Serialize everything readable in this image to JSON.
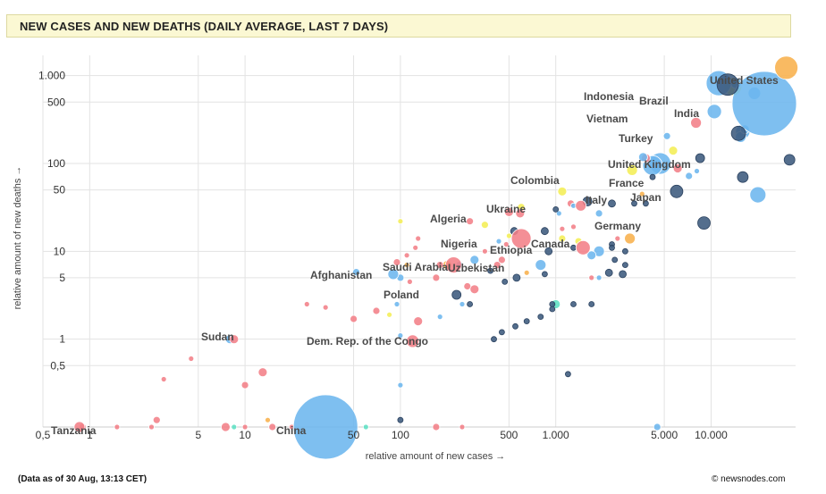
{
  "header": {
    "title": "NEW CASES AND NEW DEATHS (DAILY AVERAGE, LAST 7 DAYS)"
  },
  "footer": {
    "date_note": "(Data as of 30 Aug, 13:13 CET)",
    "credit": "© newsnodes.com"
  },
  "colors": {
    "blue": "#6cb6ee",
    "navy": "#3c5a7d",
    "red": "#f27f87",
    "yellow": "#f4ee55",
    "orange": "#f8b04c",
    "teal": "#5fe0c4",
    "dark": "#4a5a6e"
  },
  "chart_data": {
    "type": "scatter",
    "xlabel": "relative amount of new cases →",
    "ylabel": "relative amount of new deaths →",
    "xscale": "log",
    "yscale": "log",
    "xlim": [
      0.5,
      35000
    ],
    "ylim": [
      0.1,
      1700
    ],
    "x_ticks": [
      {
        "v": 0.5,
        "label": "0,5"
      },
      {
        "v": 1,
        "label": "1"
      },
      {
        "v": 5,
        "label": "5"
      },
      {
        "v": 10,
        "label": "10"
      },
      {
        "v": 50,
        "label": "50"
      },
      {
        "v": 100,
        "label": "100"
      },
      {
        "v": 500,
        "label": "500"
      },
      {
        "v": 1000,
        "label": "1.000"
      },
      {
        "v": 5000,
        "label": "5.000"
      },
      {
        "v": 10000,
        "label": "10.000"
      }
    ],
    "y_ticks": [
      {
        "v": 0.5,
        "label": "0,5"
      },
      {
        "v": 1,
        "label": "1"
      },
      {
        "v": 5,
        "label": "5"
      },
      {
        "v": 10,
        "label": "10"
      },
      {
        "v": 50,
        "label": "50"
      },
      {
        "v": 100,
        "label": "100"
      },
      {
        "v": 500,
        "label": "500"
      },
      {
        "v": 1000,
        "label": "1.000"
      }
    ],
    "grid": true,
    "labeled_points": [
      {
        "name": "United States",
        "x": 30500,
        "y": 1230,
        "r": 13,
        "c": "orange",
        "lx": 794,
        "ly": 94
      },
      {
        "name": "India",
        "x": 22000,
        "y": 480,
        "r": 36,
        "c": "blue",
        "lx": 754,
        "ly": 131
      },
      {
        "name": "Indonesia",
        "x": 11200,
        "y": 820,
        "r": 14,
        "c": "blue",
        "lx": 653,
        "ly": 112
      },
      {
        "name": "Brazil",
        "x": 12800,
        "y": 790,
        "r": 12,
        "c": "navy",
        "lx": 715,
        "ly": 117
      },
      {
        "name": "Vietnam",
        "x": 8000,
        "y": 290,
        "r": 6,
        "c": "red",
        "lx": 656,
        "ly": 137
      },
      {
        "name": "Turkey",
        "x": 15000,
        "y": 220,
        "r": 8,
        "c": "navy",
        "lx": 692,
        "ly": 159
      },
      {
        "name": "United Kingdom",
        "x": 32000,
        "y": 110,
        "r": 6,
        "c": "navy",
        "lx": 680,
        "ly": 188
      },
      {
        "name": "France",
        "x": 16000,
        "y": 70,
        "r": 6,
        "c": "navy",
        "lx": 681,
        "ly": 209
      },
      {
        "name": "Japan",
        "x": 20000,
        "y": 44,
        "r": 9,
        "c": "blue",
        "lx": 705,
        "ly": 225
      },
      {
        "name": "Italy",
        "x": 6000,
        "y": 48,
        "r": 7,
        "c": "navy",
        "lx": 655,
        "ly": 228
      },
      {
        "name": "Germany",
        "x": 9000,
        "y": 21,
        "r": 7,
        "c": "navy",
        "lx": 665,
        "ly": 257
      },
      {
        "name": "Colombia",
        "x": 3100,
        "y": 84,
        "r": 6,
        "c": "yellow",
        "lx": 571,
        "ly": 206
      },
      {
        "name": "Ukraine",
        "x": 1450,
        "y": 33,
        "r": 6,
        "c": "red",
        "lx": 544,
        "ly": 238
      },
      {
        "name": "Canada",
        "x": 3000,
        "y": 14,
        "r": 6,
        "c": "orange",
        "lx": 594,
        "ly": 277
      },
      {
        "name": "Ethiopia",
        "x": 1500,
        "y": 11,
        "r": 8,
        "c": "red",
        "lx": 548,
        "ly": 284
      },
      {
        "name": "Algeria",
        "x": 590,
        "y": 27,
        "r": 5,
        "c": "red",
        "lx": 481,
        "ly": 249
      },
      {
        "name": "Nigeria",
        "x": 600,
        "y": 14,
        "r": 11,
        "c": "red",
        "lx": 493,
        "ly": 277
      },
      {
        "name": "Uzbekistan",
        "x": 560,
        "y": 5,
        "r": 4,
        "c": "navy",
        "lx": 501,
        "ly": 304
      },
      {
        "name": "Saudi Arabia",
        "x": 220,
        "y": 7,
        "r": 9,
        "c": "red",
        "lx": 428,
        "ly": 303
      },
      {
        "name": "Afghanistan",
        "x": 90,
        "y": 5.5,
        "r": 6,
        "c": "blue",
        "lx": 347,
        "ly": 312
      },
      {
        "name": "Poland",
        "x": 230,
        "y": 3.2,
        "r": 5,
        "c": "navy",
        "lx": 429,
        "ly": 334
      },
      {
        "name": "Dem. Rep. of the Congo",
        "x": 120,
        "y": 0.95,
        "r": 7,
        "c": "red",
        "lx": 343,
        "ly": 386
      },
      {
        "name": "Sudan",
        "x": 8.5,
        "y": 1,
        "r": 5,
        "c": "red",
        "lx": 225,
        "ly": 381
      },
      {
        "name": "Tanzania",
        "x": 0.86,
        "y": 0.1,
        "r": 6,
        "c": "red",
        "lx": 57,
        "ly": 486
      },
      {
        "name": "China",
        "x": 33,
        "y": 0.1,
        "r": 36,
        "c": "blue",
        "lx": 309,
        "ly": 486
      }
    ],
    "points": [
      {
        "x": 13800,
        "y": 750,
        "r": 10,
        "c": "yellow"
      },
      {
        "x": 14500,
        "y": 820,
        "r": 6,
        "c": "blue"
      },
      {
        "x": 16000,
        "y": 230,
        "r": 8,
        "c": "blue"
      },
      {
        "x": 15500,
        "y": 200,
        "r": 6,
        "c": "blue"
      },
      {
        "x": 16500,
        "y": 245,
        "r": 5,
        "c": "blue"
      },
      {
        "x": 10500,
        "y": 390,
        "r": 8,
        "c": "blue"
      },
      {
        "x": 19000,
        "y": 630,
        "r": 7,
        "c": "blue"
      },
      {
        "x": 4700,
        "y": 100,
        "r": 12,
        "c": "blue"
      },
      {
        "x": 4200,
        "y": 95,
        "r": 11,
        "c": "blue"
      },
      {
        "x": 5200,
        "y": 205,
        "r": 4,
        "c": "blue"
      },
      {
        "x": 5700,
        "y": 140,
        "r": 5,
        "c": "yellow"
      },
      {
        "x": 6100,
        "y": 88,
        "r": 5,
        "c": "red"
      },
      {
        "x": 8500,
        "y": 115,
        "r": 5,
        "c": "navy"
      },
      {
        "x": 7200,
        "y": 72,
        "r": 4,
        "c": "blue"
      },
      {
        "x": 8100,
        "y": 82,
        "r": 3,
        "c": "blue"
      },
      {
        "x": 3800,
        "y": 115,
        "r": 5,
        "c": "red"
      },
      {
        "x": 3650,
        "y": 118,
        "r": 5,
        "c": "blue"
      },
      {
        "x": 2300,
        "y": 35,
        "r": 4,
        "c": "navy"
      },
      {
        "x": 1900,
        "y": 27,
        "r": 4,
        "c": "blue"
      },
      {
        "x": 3600,
        "y": 45,
        "r": 3,
        "c": "orange"
      },
      {
        "x": 3200,
        "y": 35,
        "r": 3,
        "c": "navy"
      },
      {
        "x": 3800,
        "y": 35,
        "r": 3,
        "c": "navy"
      },
      {
        "x": 4200,
        "y": 70,
        "r": 3,
        "c": "navy"
      },
      {
        "x": 1600,
        "y": 37,
        "r": 5,
        "c": "navy"
      },
      {
        "x": 1100,
        "y": 48,
        "r": 5,
        "c": "yellow"
      },
      {
        "x": 1250,
        "y": 35,
        "r": 4,
        "c": "red"
      },
      {
        "x": 1300,
        "y": 33,
        "r": 3,
        "c": "blue"
      },
      {
        "x": 1050,
        "y": 27,
        "r": 3,
        "c": "blue"
      },
      {
        "x": 1000,
        "y": 30,
        "r": 3,
        "c": "navy"
      },
      {
        "x": 850,
        "y": 17,
        "r": 4,
        "c": "navy"
      },
      {
        "x": 1100,
        "y": 18,
        "r": 3,
        "c": "red"
      },
      {
        "x": 1300,
        "y": 19,
        "r": 3,
        "c": "red"
      },
      {
        "x": 1100,
        "y": 14,
        "r": 4,
        "c": "yellow"
      },
      {
        "x": 1400,
        "y": 13,
        "r": 4,
        "c": "yellow"
      },
      {
        "x": 900,
        "y": 10,
        "r": 4,
        "c": "navy"
      },
      {
        "x": 1300,
        "y": 11,
        "r": 3,
        "c": "navy"
      },
      {
        "x": 1900,
        "y": 10,
        "r": 6,
        "c": "blue"
      },
      {
        "x": 1700,
        "y": 9,
        "r": 5,
        "c": "blue"
      },
      {
        "x": 2300,
        "y": 12,
        "r": 3,
        "c": "navy"
      },
      {
        "x": 2500,
        "y": 14,
        "r": 3,
        "c": "red"
      },
      {
        "x": 2300,
        "y": 11,
        "r": 3,
        "c": "navy"
      },
      {
        "x": 2800,
        "y": 10,
        "r": 3,
        "c": "navy"
      },
      {
        "x": 2400,
        "y": 8,
        "r": 3,
        "c": "navy"
      },
      {
        "x": 2800,
        "y": 7,
        "r": 3,
        "c": "navy"
      },
      {
        "x": 2700,
        "y": 5.5,
        "r": 4,
        "c": "navy"
      },
      {
        "x": 2200,
        "y": 5.7,
        "r": 4,
        "c": "navy"
      },
      {
        "x": 1900,
        "y": 5,
        "r": 3,
        "c": "blue"
      },
      {
        "x": 1700,
        "y": 5,
        "r": 3,
        "c": "red"
      },
      {
        "x": 800,
        "y": 7,
        "r": 6,
        "c": "blue"
      },
      {
        "x": 850,
        "y": 5.5,
        "r": 3,
        "c": "navy"
      },
      {
        "x": 650,
        "y": 5.7,
        "r": 3,
        "c": "orange"
      },
      {
        "x": 450,
        "y": 8,
        "r": 4,
        "c": "red"
      },
      {
        "x": 420,
        "y": 7,
        "r": 4,
        "c": "red"
      },
      {
        "x": 480,
        "y": 12,
        "r": 3,
        "c": "red"
      },
      {
        "x": 430,
        "y": 13,
        "r": 3,
        "c": "blue"
      },
      {
        "x": 500,
        "y": 15,
        "r": 3,
        "c": "yellow"
      },
      {
        "x": 540,
        "y": 17,
        "r": 4,
        "c": "navy"
      },
      {
        "x": 600,
        "y": 32,
        "r": 4,
        "c": "yellow"
      },
      {
        "x": 500,
        "y": 28,
        "r": 5,
        "c": "red"
      },
      {
        "x": 350,
        "y": 20,
        "r": 4,
        "c": "yellow"
      },
      {
        "x": 280,
        "y": 22,
        "r": 4,
        "c": "red"
      },
      {
        "x": 300,
        "y": 8,
        "r": 5,
        "c": "blue"
      },
      {
        "x": 240,
        "y": 7,
        "r": 4,
        "c": "blue"
      },
      {
        "x": 200,
        "y": 7,
        "r": 5,
        "c": "orange"
      },
      {
        "x": 180,
        "y": 7,
        "r": 4,
        "c": "red"
      },
      {
        "x": 170,
        "y": 5,
        "r": 4,
        "c": "red"
      },
      {
        "x": 350,
        "y": 10,
        "r": 3,
        "c": "red"
      },
      {
        "x": 380,
        "y": 6,
        "r": 3,
        "c": "navy"
      },
      {
        "x": 470,
        "y": 4.5,
        "r": 3,
        "c": "navy"
      },
      {
        "x": 270,
        "y": 4,
        "r": 4,
        "c": "red"
      },
      {
        "x": 300,
        "y": 3.7,
        "r": 5,
        "c": "red"
      },
      {
        "x": 280,
        "y": 2.5,
        "r": 3,
        "c": "navy"
      },
      {
        "x": 250,
        "y": 2.5,
        "r": 3,
        "c": "blue"
      },
      {
        "x": 1000,
        "y": 2.5,
        "r": 5,
        "c": "teal"
      },
      {
        "x": 950,
        "y": 2.2,
        "r": 3,
        "c": "navy"
      },
      {
        "x": 1300,
        "y": 2.5,
        "r": 3,
        "c": "navy"
      },
      {
        "x": 1700,
        "y": 2.5,
        "r": 3,
        "c": "navy"
      },
      {
        "x": 950,
        "y": 2.5,
        "r": 3,
        "c": "navy"
      },
      {
        "x": 800,
        "y": 1.8,
        "r": 3,
        "c": "navy"
      },
      {
        "x": 650,
        "y": 1.6,
        "r": 3,
        "c": "navy"
      },
      {
        "x": 550,
        "y": 1.4,
        "r": 3,
        "c": "navy"
      },
      {
        "x": 450,
        "y": 1.2,
        "r": 3,
        "c": "navy"
      },
      {
        "x": 400,
        "y": 1.0,
        "r": 3,
        "c": "navy"
      },
      {
        "x": 130,
        "y": 1.6,
        "r": 5,
        "c": "red"
      },
      {
        "x": 100,
        "y": 1.1,
        "r": 3,
        "c": "blue"
      },
      {
        "x": 180,
        "y": 1.8,
        "r": 3,
        "c": "blue"
      },
      {
        "x": 50,
        "y": 1.7,
        "r": 4,
        "c": "red"
      },
      {
        "x": 70,
        "y": 2.1,
        "r": 4,
        "c": "red"
      },
      {
        "x": 85,
        "y": 1.9,
        "r": 3,
        "c": "yellow"
      },
      {
        "x": 95,
        "y": 2.5,
        "r": 3,
        "c": "blue"
      },
      {
        "x": 25,
        "y": 2.5,
        "r": 3,
        "c": "red"
      },
      {
        "x": 33,
        "y": 2.3,
        "r": 3,
        "c": "red"
      },
      {
        "x": 52,
        "y": 5.8,
        "r": 4,
        "c": "blue"
      },
      {
        "x": 100,
        "y": 5,
        "r": 4,
        "c": "blue"
      },
      {
        "x": 115,
        "y": 4.5,
        "r": 3,
        "c": "red"
      },
      {
        "x": 95,
        "y": 7.5,
        "r": 4,
        "c": "red"
      },
      {
        "x": 110,
        "y": 9,
        "r": 3,
        "c": "red"
      },
      {
        "x": 125,
        "y": 11,
        "r": 3,
        "c": "red"
      },
      {
        "x": 130,
        "y": 14,
        "r": 3,
        "c": "red"
      },
      {
        "x": 100,
        "y": 22,
        "r": 3,
        "c": "yellow"
      },
      {
        "x": 110,
        "y": 7,
        "r": 3,
        "c": "orange"
      },
      {
        "x": 3,
        "y": 0.35,
        "r": 3,
        "c": "red"
      },
      {
        "x": 4.5,
        "y": 0.6,
        "r": 3,
        "c": "red"
      },
      {
        "x": 10,
        "y": 0.3,
        "r": 4,
        "c": "red"
      },
      {
        "x": 13,
        "y": 0.42,
        "r": 5,
        "c": "red"
      },
      {
        "x": 8,
        "y": 1,
        "r": 5,
        "c": "blue"
      },
      {
        "x": 100,
        "y": 0.3,
        "r": 3,
        "c": "blue"
      },
      {
        "x": 1200,
        "y": 0.4,
        "r": 3,
        "c": "navy"
      },
      {
        "x": 2.5,
        "y": 0.1,
        "r": 3,
        "c": "red"
      },
      {
        "x": 1.5,
        "y": 0.1,
        "r": 3,
        "c": "red"
      },
      {
        "x": 0.9,
        "y": 0.1,
        "r": 4,
        "c": "red"
      },
      {
        "x": 2.7,
        "y": 0.12,
        "r": 4,
        "c": "red"
      },
      {
        "x": 7.5,
        "y": 0.1,
        "r": 5,
        "c": "red"
      },
      {
        "x": 8.5,
        "y": 0.1,
        "r": 3,
        "c": "teal"
      },
      {
        "x": 10,
        "y": 0.1,
        "r": 3,
        "c": "red"
      },
      {
        "x": 14,
        "y": 0.12,
        "r": 3,
        "c": "orange"
      },
      {
        "x": 15,
        "y": 0.1,
        "r": 4,
        "c": "red"
      },
      {
        "x": 20,
        "y": 0.1,
        "r": 3,
        "c": "red"
      },
      {
        "x": 60,
        "y": 0.1,
        "r": 3,
        "c": "teal"
      },
      {
        "x": 100,
        "y": 0.12,
        "r": 3,
        "c": "navy"
      },
      {
        "x": 170,
        "y": 0.1,
        "r": 4,
        "c": "red"
      },
      {
        "x": 250,
        "y": 0.1,
        "r": 3,
        "c": "red"
      },
      {
        "x": 4500,
        "y": 0.1,
        "r": 4,
        "c": "blue"
      }
    ]
  }
}
